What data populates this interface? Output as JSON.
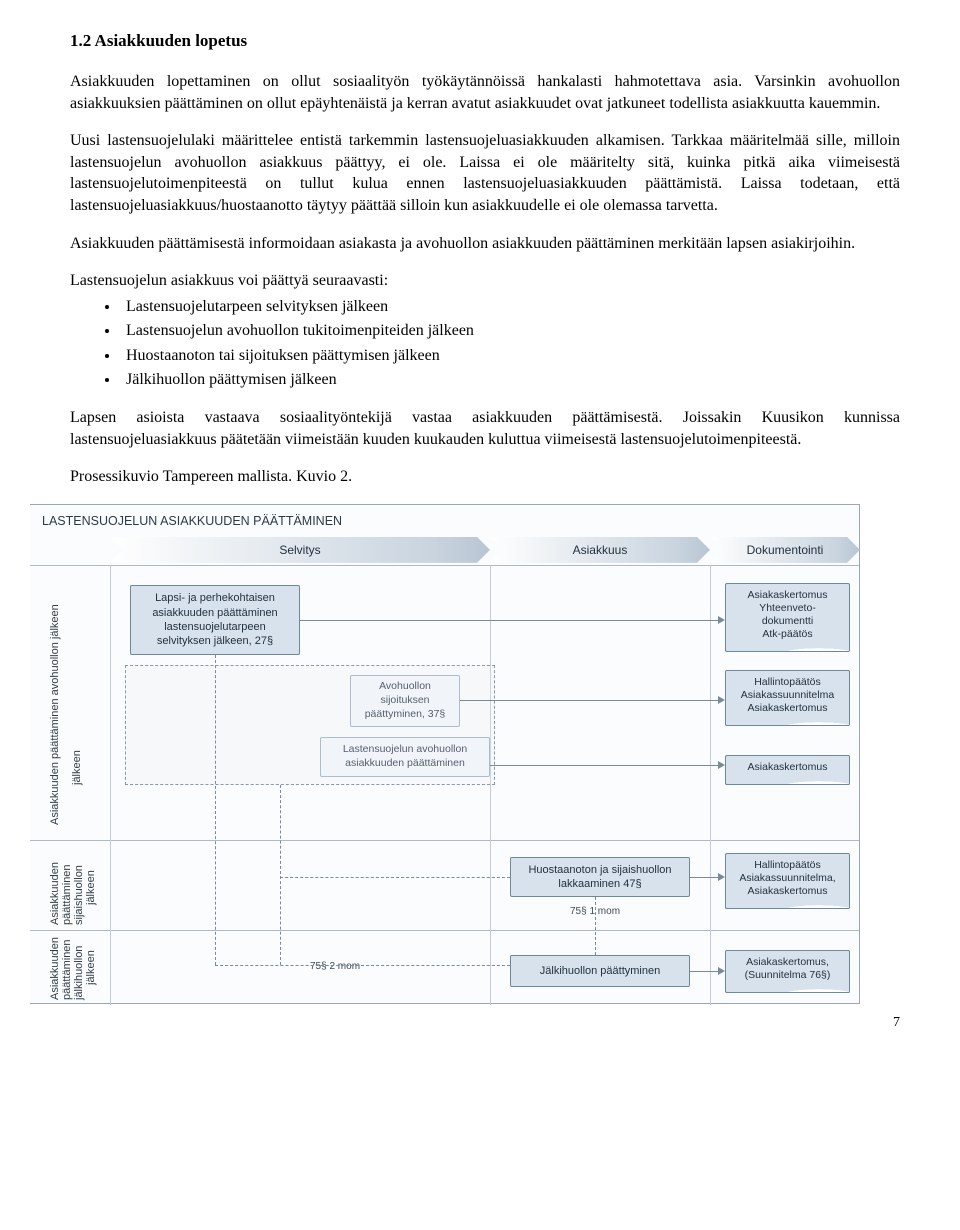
{
  "heading": "1.2 Asiakkuuden lopetus",
  "p1": "Asiakkuuden lopettaminen on ollut sosiaalityön työkäytännöissä hankalasti hahmotettava asia. Varsinkin avohuollon asiakkuuksien päättäminen on ollut epäyhtenäistä ja kerran avatut asiakkuudet ovat jatkuneet todellista asiakkuutta kauemmin.",
  "p2": "Uusi lastensuojelulaki määrittelee entistä tarkemmin lastensuojeluasiakkuuden alkamisen. Tarkkaa määritelmää sille, milloin lastensuojelun avohuollon asiakkuus päättyy, ei ole. Laissa ei ole määritelty sitä, kuinka pitkä aika viimeisestä lastensuojelutoimenpiteestä on tullut kulua ennen lastensuojeluasiakkuuden päättämistä. Laissa todetaan, että lastensuojeluasiakkuus/huostaanotto täytyy päättää silloin kun asiakkuudelle ei ole olemassa tarvetta.",
  "p3": "Asiakkuuden päättämisestä informoidaan asiakasta ja avohuollon asiakkuuden päättäminen merkitään lapsen asiakirjoihin.",
  "list_intro": "Lastensuojelun asiakkuus voi päättyä seuraavasti:",
  "list": [
    "Lastensuojelutarpeen selvityksen jälkeen",
    "Lastensuojelun avohuollon tukitoimenpiteiden jälkeen",
    "Huostaanoton tai sijoituksen päättymisen jälkeen",
    "Jälkihuollon päättymisen jälkeen"
  ],
  "p4": "Lapsen asioista vastaava sosiaalityöntekijä vastaa asiakkuuden päättämisestä.  Joissakin Kuusikon kunnissa lastensuojeluasiakkuus päätetään viimeistään kuuden kuukauden kuluttua viimeisestä lastensuojelutoimenpiteestä.",
  "p5": "Prosessikuvio Tampereen mallista. Kuvio 2.",
  "page_number": "7",
  "diagram": {
    "title": "LASTENSUOJELUN ASIAKKUUDEN PÄÄTTÄMINEN",
    "lanes": {
      "l1": "Selvitys",
      "l2": "Asiakkuus",
      "l3": "Dokumentointi"
    },
    "rows": {
      "r1": "Asiakkuuden päättäminen avohuollon jälkeen",
      "r2": "Asiakkuuden päättäminen sijaishuollon jälkeen",
      "r3": "Asiakkuuden päättäminen jälkihuollon jälkeen"
    },
    "boxes": {
      "b_selvitys": "Lapsi- ja perhekohtaisen asiakkuuden päättäminen lastensuojelutarpeen selvityksen jälkeen, 27§",
      "b_avosij": "Avohuollon sijoituksen päättyminen, 37§",
      "b_avoasiak": "Lastensuojelun avohuollon asiakkuuden päättäminen",
      "b_huosta": "Huostaanoton ja sijaishuollon lakkaaminen 47§",
      "b_jalki": "Jälkihuollon päättyminen"
    },
    "docs": {
      "d1": "Asiakaskertomus\nYhteenveto-dokumentti\nAtk-päätös",
      "d2": "Hallintopäätös\nAsiakassuunnitelma\nAsiakaskertomus",
      "d3": "Asiakaskertomus",
      "d4": "Hallintopäätös\nAsiakassuunnitelma,\nAsiakaskertomus",
      "d5": "Asiakaskertomus,\n(Suunnitelma 76§)"
    },
    "notes": {
      "n1": "75§ 1 mom",
      "n2": "75§ 2 mom"
    },
    "colors": {
      "box_fill": "#d7e2ec",
      "box_border": "#6f87a0",
      "light_fill": "#f4f7fb",
      "divider": "#aeb9c5"
    }
  }
}
